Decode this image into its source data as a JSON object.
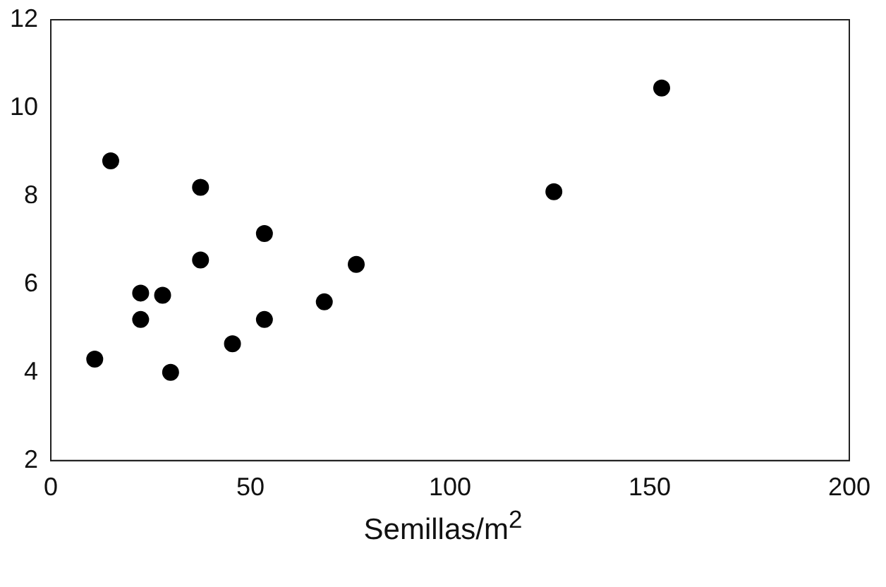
{
  "chart_data": {
    "type": "scatter",
    "xlabel": "Semillas/m$^{2}$",
    "x": [
      11,
      15,
      22.5,
      22.5,
      28,
      30,
      37.5,
      37.5,
      45.5,
      53.5,
      53.5,
      68.5,
      76.5,
      126,
      153
    ],
    "series": [
      {
        "color": "#000000",
        "values": [
          4.3,
          8.8,
          5.8,
          5.2,
          5.75,
          4.0,
          8.2,
          6.55,
          4.65,
          7.15,
          5.2,
          5.6,
          6.45,
          8.1,
          10.45
        ]
      }
    ],
    "xlim": [
      0,
      200
    ],
    "xticks": [
      0,
      50,
      100,
      150,
      200
    ],
    "ylim": [
      2,
      12
    ],
    "yticks": [
      2,
      4,
      6,
      8,
      10,
      12
    ],
    "marker": "circle",
    "grid": false,
    "legend": false
  }
}
